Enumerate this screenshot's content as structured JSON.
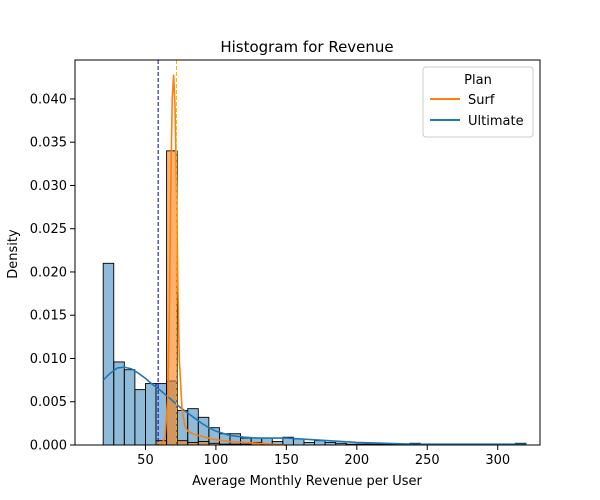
{
  "chart_data": {
    "type": "bar",
    "title": "Histogram for Revenue",
    "xlabel": "Average Monthly Revenue per User",
    "ylabel": "Density",
    "xlim": [
      0,
      330
    ],
    "ylim": [
      0,
      0.0445
    ],
    "xticks": [
      50,
      100,
      150,
      200,
      250,
      300
    ],
    "xtick_labels": [
      "50",
      "100",
      "150",
      "200",
      "250",
      "300"
    ],
    "yticks": [
      0,
      0.005,
      0.01,
      0.015,
      0.02,
      0.025,
      0.03,
      0.035,
      0.04
    ],
    "ytick_labels": [
      "0.000",
      "0.005",
      "0.010",
      "0.015",
      "0.020",
      "0.025",
      "0.030",
      "0.035",
      "0.040"
    ],
    "grid": false,
    "legend": {
      "title": "Plan",
      "placement": "top-right",
      "entries": [
        {
          "label": "Surf",
          "color": "#ff7f0e"
        },
        {
          "label": "Ultimate",
          "color": "#1f77b4"
        }
      ]
    },
    "series": [
      {
        "name": "Ultimate",
        "color": "#1f77b4",
        "bin_width": 7.5,
        "bin_starts": [
          20,
          27.5,
          35,
          42.5,
          50,
          57.5,
          65,
          72.5,
          80,
          87.5,
          95,
          102.5,
          110,
          117.5,
          125,
          132.5,
          140,
          147.5,
          155,
          162.5,
          170,
          177.5,
          185,
          192.5,
          200,
          207.5,
          215,
          222.5,
          230,
          237.5,
          245,
          252.5,
          260,
          267.5,
          275,
          282.5,
          290,
          297.5,
          305,
          312.5
        ],
        "values": [
          0.021,
          0.0096,
          0.0087,
          0.0064,
          0.0071,
          0.0071,
          0.0074,
          0.004,
          0.0042,
          0.0032,
          0.002,
          0.0013,
          0.0013,
          0.0008,
          0.0008,
          0.0008,
          0.0004,
          0.0009,
          0.0007,
          0.0003,
          0.0005,
          0.0003,
          0.0002,
          0.0001,
          0.0001,
          0.0001,
          0.0001,
          0.0001,
          0.0,
          0.0002,
          0.0001,
          0.0,
          0.0,
          0.0001,
          0.0001,
          0.0,
          0.0,
          0.0001,
          0.0001,
          0.0002
        ],
        "kde": {
          "x": [
            20,
            25,
            30,
            35,
            40,
            45,
            50,
            55,
            60,
            65,
            70,
            75,
            80,
            85,
            90,
            95,
            100,
            110,
            120,
            130,
            140,
            150,
            160,
            170,
            180,
            190,
            200,
            220,
            240,
            260,
            280,
            300,
            320
          ],
          "y": [
            0.0075,
            0.0083,
            0.0089,
            0.009,
            0.0088,
            0.0083,
            0.0077,
            0.007,
            0.0064,
            0.0057,
            0.005,
            0.0043,
            0.0037,
            0.0031,
            0.0025,
            0.002,
            0.0016,
            0.0011,
            0.0009,
            0.0008,
            0.0008,
            0.0008,
            0.0007,
            0.0006,
            0.0005,
            0.0004,
            0.0003,
            0.0002,
            0.0001,
            0.0001,
            0.0001,
            0.0001,
            0.0001
          ]
        },
        "mean_line": 59
      },
      {
        "name": "Surf",
        "color": "#ff7f0e",
        "bin_width": 7.5,
        "bin_starts": [
          57.5,
          65,
          72.5,
          80,
          87.5,
          95,
          102.5,
          110,
          117.5,
          125,
          132.5
        ],
        "values": [
          0.0005,
          0.034,
          0.0005,
          0.0003,
          0.0004,
          0.0002,
          0.0001,
          0.0001,
          0.0001,
          0.0003,
          0.0001
        ],
        "kde": {
          "x": [
            60,
            62,
            64,
            66,
            67,
            68,
            69,
            70,
            71,
            72,
            73,
            74,
            76,
            78,
            80,
            85,
            90,
            100,
            110,
            120,
            130,
            140,
            150
          ],
          "y": [
            0.0,
            0.0002,
            0.001,
            0.006,
            0.016,
            0.03,
            0.04,
            0.0428,
            0.039,
            0.03,
            0.018,
            0.01,
            0.004,
            0.0022,
            0.0016,
            0.0012,
            0.001,
            0.0006,
            0.0004,
            0.0003,
            0.0002,
            0.0001,
            0.0
          ]
        },
        "mean_line": 72
      }
    ]
  }
}
